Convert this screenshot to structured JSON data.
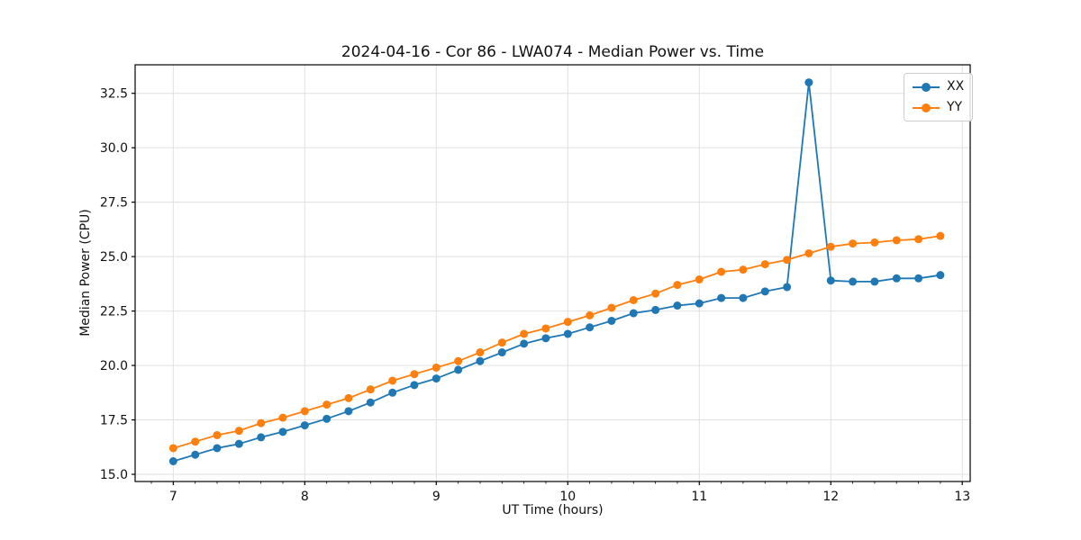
{
  "chart_data": {
    "type": "line",
    "title": "2024-04-16 - Cor 86 - LWA074 - Median Power vs. Time",
    "xlabel": "UT Time (hours)",
    "ylabel": "Median Power (CPU)",
    "xlim": [
      6.71,
      13.06
    ],
    "ylim": [
      14.67,
      33.81
    ],
    "x_ticks": [
      7,
      8,
      9,
      10,
      11,
      12,
      13
    ],
    "x_tick_labels": [
      "7",
      "8",
      "9",
      "10",
      "11",
      "12",
      "13"
    ],
    "x_minor_tick_step_hours": 0.16667,
    "y_ticks": [
      15.0,
      17.5,
      20.0,
      22.5,
      25.0,
      27.5,
      30.0,
      32.5
    ],
    "y_tick_labels": [
      "15.0",
      "17.5",
      "20.0",
      "22.5",
      "25.0",
      "27.5",
      "30.0",
      "32.5"
    ],
    "grid": true,
    "grid_color": "#e0e0e0",
    "axis_color": "#000000",
    "legend_position": "upper right",
    "x": [
      7.0,
      7.167,
      7.333,
      7.5,
      7.667,
      7.833,
      8.0,
      8.167,
      8.333,
      8.5,
      8.667,
      8.833,
      9.0,
      9.167,
      9.333,
      9.5,
      9.667,
      9.833,
      10.0,
      10.167,
      10.333,
      10.5,
      10.667,
      10.833,
      11.0,
      11.167,
      11.333,
      11.5,
      11.667,
      11.833,
      12.0,
      12.167,
      12.333,
      12.5,
      12.667,
      12.833
    ],
    "series": [
      {
        "name": "XX",
        "color": "#1f77b4",
        "values": [
          15.6,
          15.9,
          16.2,
          16.4,
          16.7,
          16.95,
          17.25,
          17.55,
          17.9,
          18.3,
          18.75,
          19.1,
          19.4,
          19.8,
          20.2,
          20.6,
          21.0,
          21.25,
          21.45,
          21.75,
          22.05,
          22.4,
          22.55,
          22.75,
          22.85,
          23.1,
          23.1,
          23.4,
          23.6,
          33.0,
          23.9,
          23.85,
          23.85,
          24.0,
          24.0,
          24.15
        ]
      },
      {
        "name": "YY",
        "color": "#ff7f0e",
        "values": [
          16.2,
          16.5,
          16.8,
          17.0,
          17.35,
          17.6,
          17.9,
          18.2,
          18.5,
          18.9,
          19.3,
          19.6,
          19.9,
          20.2,
          20.6,
          21.05,
          21.45,
          21.7,
          22.0,
          22.3,
          22.65,
          23.0,
          23.3,
          23.7,
          23.95,
          24.3,
          24.4,
          24.65,
          24.85,
          25.15,
          25.45,
          25.6,
          25.65,
          25.75,
          25.8,
          25.95
        ]
      }
    ]
  }
}
